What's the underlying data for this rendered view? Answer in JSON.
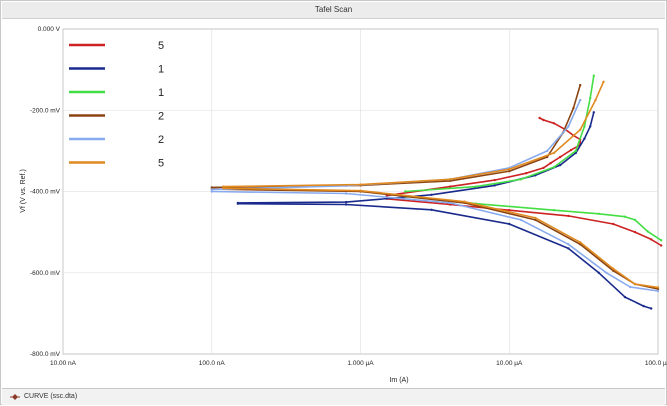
{
  "window": {
    "title": "Tafel Scan"
  },
  "status_bar": {
    "curve_label": "CURVE (ssc.dta)"
  },
  "chart_data": {
    "type": "line",
    "title": "Tafel Scan",
    "xlabel": "Im (A)",
    "ylabel": "Vf (V vs. Ref.)",
    "x_scale": "log",
    "xlim": [
      1e-08,
      0.0001
    ],
    "ylim": [
      -800,
      0
    ],
    "x_ticks": [
      {
        "value": 1e-08,
        "label": "10.00 nA"
      },
      {
        "value": 1e-07,
        "label": "100.0 nA"
      },
      {
        "value": 1e-06,
        "label": "1.000 µA"
      },
      {
        "value": 1e-05,
        "label": "10.00 µA"
      },
      {
        "value": 0.0001,
        "label": "100.0 µA"
      }
    ],
    "y_ticks": [
      {
        "value": 0,
        "label": "0.000 V"
      },
      {
        "value": -200,
        "label": "-200.0 mV"
      },
      {
        "value": -400,
        "label": "-400.0 mV"
      },
      {
        "value": -600,
        "label": "-600.0 mV"
      },
      {
        "value": -800,
        "label": "-800.0 mV"
      }
    ],
    "grid": true,
    "legend_position": "top-left",
    "series": [
      {
        "name": "5",
        "color": "#cc2222",
        "anodic": [
          [
            1.5e-06,
            -410
          ],
          [
            4e-06,
            -388
          ],
          [
            8e-06,
            -372
          ],
          [
            1.3e-05,
            -355
          ],
          [
            1.7e-05,
            -342
          ],
          [
            1.9e-05,
            -330
          ],
          [
            2.2e-05,
            -315
          ],
          [
            2.6e-05,
            -298
          ],
          [
            3e-05,
            -285
          ],
          [
            3e-05,
            -272
          ],
          [
            2.7e-05,
            -262
          ],
          [
            2.4e-05,
            -248
          ],
          [
            2e-05,
            -232
          ],
          [
            1.7e-05,
            -224
          ],
          [
            1.6e-05,
            -219
          ]
        ],
        "cathodic": [
          [
            1.5e-06,
            -418
          ],
          [
            4e-06,
            -432
          ],
          [
            1e-05,
            -446
          ],
          [
            2.5e-05,
            -460
          ],
          [
            5e-05,
            -480
          ],
          [
            7e-05,
            -500
          ],
          [
            9e-05,
            -518
          ],
          [
            0.000105,
            -533
          ]
        ]
      },
      {
        "name": "1",
        "color": "#1a2a8c",
        "anodic": [
          [
            1.5e-07,
            -428
          ],
          [
            8e-07,
            -426
          ],
          [
            3e-06,
            -408
          ],
          [
            8e-06,
            -385
          ],
          [
            1.5e-05,
            -360
          ],
          [
            2.2e-05,
            -335
          ],
          [
            2.8e-05,
            -305
          ],
          [
            3.2e-05,
            -270
          ],
          [
            3.5e-05,
            -240
          ],
          [
            3.7e-05,
            -205
          ]
        ],
        "cathodic": [
          [
            1.5e-07,
            -430
          ],
          [
            8e-07,
            -432
          ],
          [
            3e-06,
            -445
          ],
          [
            1e-05,
            -480
          ],
          [
            2.5e-05,
            -540
          ],
          [
            4e-05,
            -600
          ],
          [
            6e-05,
            -660
          ],
          [
            8e-05,
            -682
          ],
          [
            9e-05,
            -688
          ]
        ]
      },
      {
        "name": "1",
        "color": "#44dd44",
        "anodic": [
          [
            2e-06,
            -400
          ],
          [
            6e-06,
            -388
          ],
          [
            1.2e-05,
            -370
          ],
          [
            2e-05,
            -340
          ],
          [
            2.8e-05,
            -300
          ],
          [
            3.2e-05,
            -240
          ],
          [
            3.5e-05,
            -170
          ],
          [
            3.7e-05,
            -115
          ]
        ],
        "cathodic": [
          [
            2e-06,
            -412
          ],
          [
            6e-06,
            -430
          ],
          [
            2e-05,
            -446
          ],
          [
            4e-05,
            -455
          ],
          [
            6e-05,
            -462
          ],
          [
            7e-05,
            -470
          ],
          [
            8.5e-05,
            -498
          ],
          [
            0.000105,
            -520
          ]
        ]
      },
      {
        "name": "2",
        "color": "#8b4513",
        "anodic": [
          [
            1e-07,
            -390
          ],
          [
            1e-06,
            -385
          ],
          [
            4e-06,
            -374
          ],
          [
            1e-05,
            -350
          ],
          [
            1.8e-05,
            -315
          ],
          [
            2.3e-05,
            -255
          ],
          [
            2.7e-05,
            -195
          ],
          [
            3e-05,
            -138
          ]
        ],
        "cathodic": [
          [
            1e-07,
            -394
          ],
          [
            1e-06,
            -400
          ],
          [
            5e-06,
            -428
          ],
          [
            1.5e-05,
            -470
          ],
          [
            3e-05,
            -530
          ],
          [
            5e-05,
            -595
          ],
          [
            7e-05,
            -628
          ],
          [
            0.0001,
            -640
          ]
        ]
      },
      {
        "name": "2",
        "color": "#88aaee",
        "anodic": [
          [
            1e-07,
            -395
          ],
          [
            8e-07,
            -386
          ],
          [
            4e-06,
            -370
          ],
          [
            1e-05,
            -342
          ],
          [
            1.8e-05,
            -300
          ],
          [
            2.5e-05,
            -240
          ],
          [
            3e-05,
            -175
          ]
        ],
        "cathodic": [
          [
            1e-07,
            -400
          ],
          [
            8e-07,
            -405
          ],
          [
            4e-06,
            -428
          ],
          [
            1.2e-05,
            -470
          ],
          [
            2.5e-05,
            -530
          ],
          [
            4.5e-05,
            -600
          ],
          [
            6.5e-05,
            -635
          ],
          [
            0.0001,
            -645
          ]
        ]
      },
      {
        "name": "5",
        "color": "#e08a20",
        "anodic": [
          [
            1.2e-07,
            -388
          ],
          [
            1e-06,
            -383
          ],
          [
            4e-06,
            -370
          ],
          [
            1e-05,
            -345
          ],
          [
            2e-05,
            -305
          ],
          [
            3e-05,
            -248
          ],
          [
            3.8e-05,
            -175
          ],
          [
            4.3e-05,
            -130
          ]
        ],
        "cathodic": [
          [
            1.2e-07,
            -392
          ],
          [
            1e-06,
            -398
          ],
          [
            5e-06,
            -425
          ],
          [
            1.5e-05,
            -465
          ],
          [
            3e-05,
            -525
          ],
          [
            5e-05,
            -590
          ],
          [
            7e-05,
            -628
          ],
          [
            0.0001,
            -636
          ]
        ]
      }
    ]
  }
}
